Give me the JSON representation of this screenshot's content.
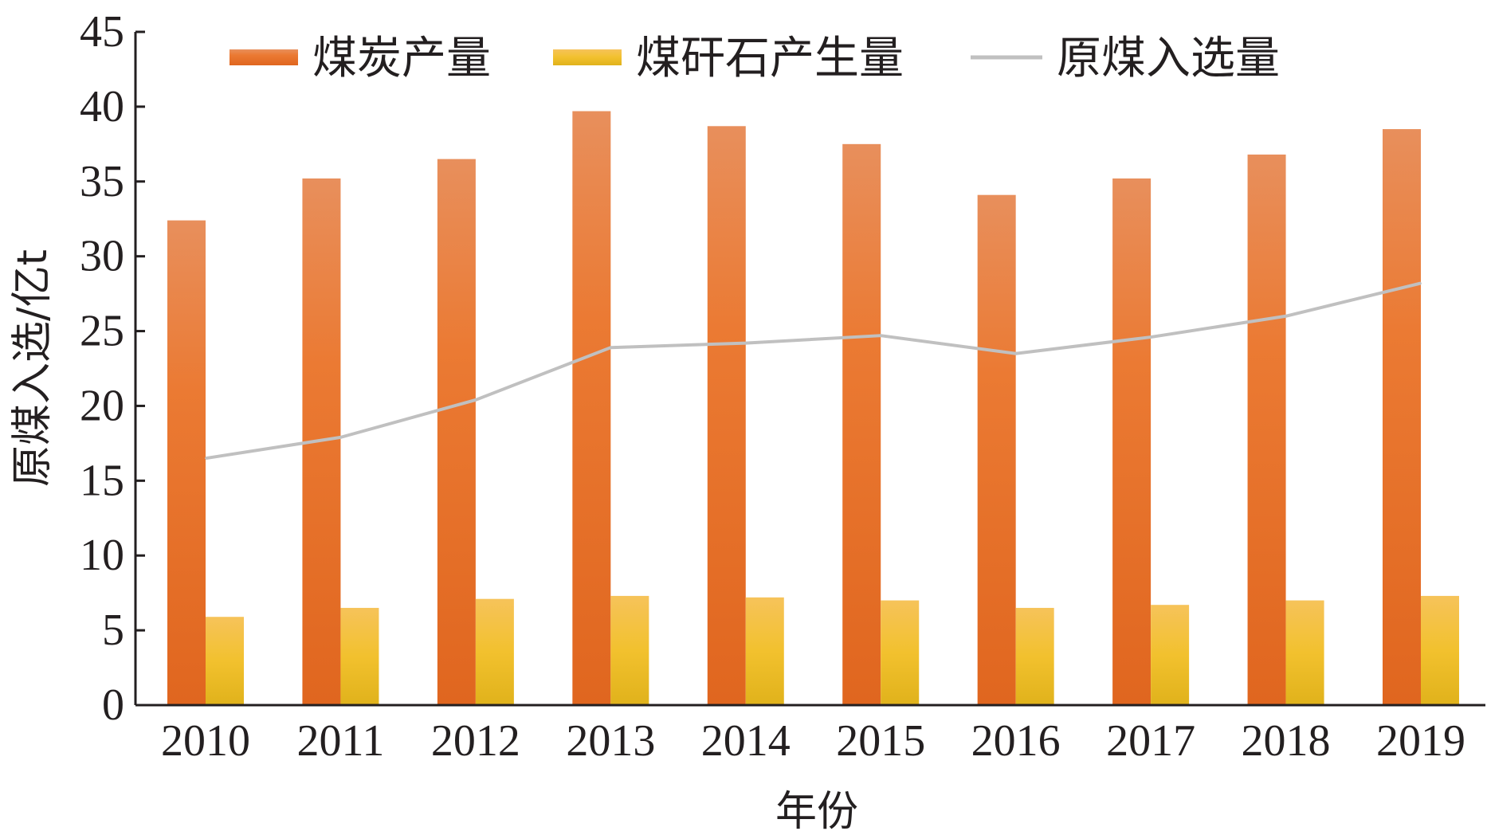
{
  "chart_data": {
    "type": "bar",
    "title": "",
    "xlabel": "年份",
    "ylabel": "原煤入选/亿t",
    "categories": [
      "2010",
      "2011",
      "2012",
      "2013",
      "2014",
      "2015",
      "2016",
      "2017",
      "2018",
      "2019"
    ],
    "y_ticks": [
      "0",
      "5",
      "10",
      "15",
      "20",
      "25",
      "30",
      "35",
      "40",
      "45"
    ],
    "ylim": [
      0,
      45
    ],
    "grid": false,
    "legend_position": "top",
    "series": [
      {
        "name": "煤炭产量",
        "type": "bar",
        "color": "#e8722c",
        "values": [
          32.4,
          35.2,
          36.5,
          39.7,
          38.7,
          37.5,
          34.1,
          35.2,
          36.8,
          38.5
        ]
      },
      {
        "name": "煤矸石产生量",
        "type": "bar",
        "color": "#f2c12e",
        "values": [
          5.9,
          6.5,
          7.1,
          7.3,
          7.2,
          7.0,
          6.5,
          6.7,
          7.0,
          7.3
        ]
      },
      {
        "name": "原煤入选量",
        "type": "line",
        "color": "#c0c0c0",
        "values": [
          16.5,
          17.9,
          20.4,
          23.9,
          24.2,
          24.7,
          23.5,
          24.6,
          26.0,
          28.2
        ]
      }
    ]
  }
}
